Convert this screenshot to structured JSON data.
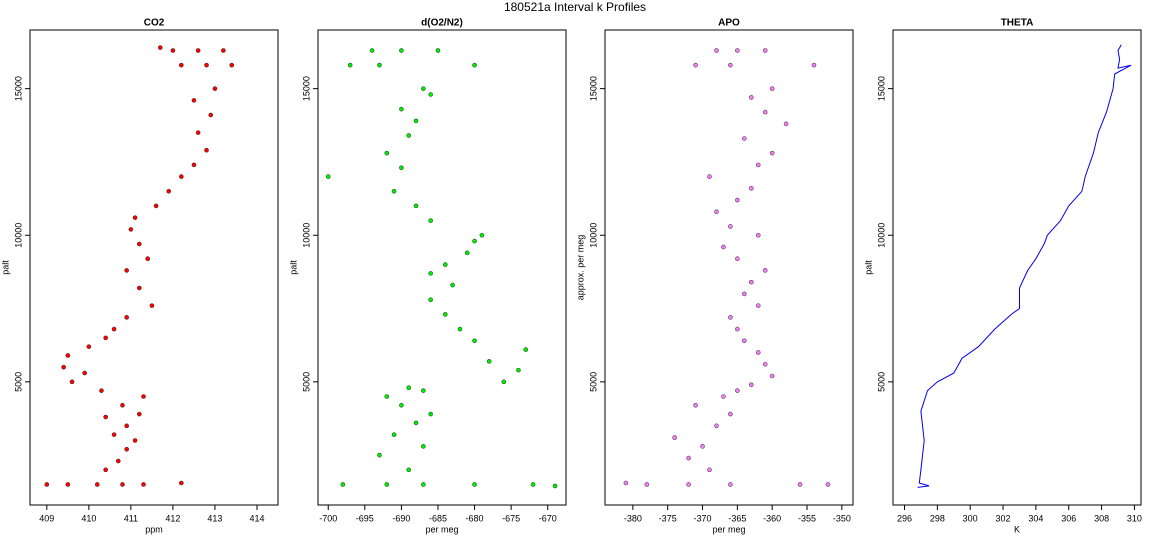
{
  "title": "180521a   Interval k Profiles",
  "chart_data": [
    {
      "type": "scatter",
      "title": "CO2",
      "xlabel": "ppm",
      "ylabel": "palt",
      "color": "#ff0000",
      "edgecolor": "#552222",
      "xlim": [
        408.6,
        414.5
      ],
      "xticks": [
        409,
        410,
        411,
        412,
        413,
        414
      ],
      "ylim": [
        800,
        17000
      ],
      "yticks": [
        5000,
        10000,
        15000
      ],
      "x": [
        410.2,
        409.5,
        410.8,
        411.3,
        409.0,
        412.2,
        410.4,
        410.7,
        410.9,
        411.1,
        410.6,
        410.9,
        410.4,
        411.2,
        410.8,
        411.3,
        410.3,
        409.6,
        409.9,
        409.4,
        409.5,
        410.0,
        410.4,
        410.6,
        410.9,
        411.5,
        411.2,
        410.9,
        411.4,
        411.2,
        411.0,
        411.1,
        411.6,
        411.9,
        412.2,
        412.5,
        412.8,
        412.6,
        412.9,
        412.5,
        413.0,
        412.8,
        412.2,
        413.4,
        412.6,
        412.0,
        413.2,
        411.7
      ],
      "values": [
        1500,
        1500,
        1500,
        1500,
        1500,
        1550,
        2000,
        2300,
        2700,
        3000,
        3200,
        3500,
        3800,
        3900,
        4200,
        4500,
        4700,
        5000,
        5300,
        5500,
        5900,
        6200,
        6500,
        6800,
        7200,
        7600,
        8200,
        8800,
        9200,
        9700,
        10200,
        10600,
        11000,
        11500,
        12000,
        12400,
        12900,
        13500,
        14100,
        14600,
        15000,
        15800,
        15800,
        15800,
        16300,
        16300,
        16300,
        16400
      ]
    },
    {
      "type": "scatter",
      "title": "d(O2/N2)",
      "xlabel": "per meg",
      "ylabel": "palt",
      "color": "#00ee00",
      "edgecolor": "#225522",
      "xlim": [
        -701.4,
        -667.5
      ],
      "xticks": [
        -700,
        -695,
        -690,
        -685,
        -680,
        -675,
        -670
      ],
      "ylim": [
        800,
        17000
      ],
      "yticks": [
        5000,
        10000,
        15000
      ],
      "x": [
        -687,
        -698,
        -680,
        -672,
        -692,
        -669,
        -689,
        -693,
        -687,
        -691,
        -688,
        -686,
        -690,
        -692,
        -687,
        -689,
        -676,
        -674,
        -678,
        -673,
        -680,
        -682,
        -684,
        -686,
        -683,
        -686,
        -684,
        -681,
        -680,
        -679,
        -686,
        -688,
        -691,
        -700,
        -690,
        -692,
        -689,
        -688,
        -690,
        -686,
        -687,
        -693,
        -697,
        -680,
        -690,
        -694,
        -685
      ],
      "values": [
        1500,
        1500,
        1500,
        1500,
        1500,
        1450,
        2000,
        2500,
        2800,
        3200,
        3600,
        3900,
        4200,
        4500,
        4700,
        4800,
        5000,
        5400,
        5700,
        6100,
        6400,
        6800,
        7300,
        7800,
        8300,
        8700,
        9000,
        9400,
        9800,
        10000,
        10500,
        11000,
        11500,
        12000,
        12300,
        12800,
        13400,
        13900,
        14300,
        14800,
        15000,
        15800,
        15800,
        15800,
        16300,
        16300,
        16300
      ]
    },
    {
      "type": "scatter",
      "title": "APO",
      "xlabel": "per meg",
      "ylabel": "approx. per meg",
      "color": "#ee82ee",
      "edgecolor": "#663366",
      "xlim": [
        -384,
        -348.4
      ],
      "xticks": [
        -380,
        -375,
        -370,
        -365,
        -360,
        -355,
        -350
      ],
      "ylim": [
        800,
        17000
      ],
      "yticks": [
        5000,
        10000,
        15000
      ],
      "x": [
        -366,
        -378,
        -356,
        -372,
        -352,
        -381,
        -369,
        -372,
        -370,
        -374,
        -368,
        -366,
        -371,
        -367,
        -365,
        -363,
        -360,
        -361,
        -362,
        -364,
        -365,
        -366,
        -362,
        -364,
        -363,
        -361,
        -365,
        -367,
        -362,
        -366,
        -368,
        -365,
        -363,
        -369,
        -362,
        -360,
        -364,
        -358,
        -361,
        -363,
        -360,
        -366,
        -371,
        -354,
        -365,
        -361,
        -368
      ],
      "values": [
        1500,
        1500,
        1500,
        1500,
        1500,
        1550,
        2000,
        2400,
        2800,
        3100,
        3500,
        3900,
        4200,
        4500,
        4700,
        4900,
        5200,
        5600,
        6000,
        6400,
        6800,
        7200,
        7600,
        8000,
        8400,
        8800,
        9200,
        9600,
        10000,
        10300,
        10800,
        11200,
        11600,
        12000,
        12400,
        12800,
        13300,
        13800,
        14200,
        14700,
        15000,
        15800,
        15800,
        15800,
        16300,
        16300,
        16300
      ]
    },
    {
      "type": "line",
      "title": "THETA",
      "xlabel": "K",
      "ylabel": "palt",
      "color": "#0000ee",
      "xlim": [
        295.3,
        310.4
      ],
      "xticks": [
        296,
        298,
        300,
        302,
        304,
        306,
        308,
        310
      ],
      "ylim": [
        800,
        17000
      ],
      "yticks": [
        5000,
        10000,
        15000
      ],
      "x": [
        296.8,
        297.5,
        296.9,
        297.0,
        297.2,
        297.0,
        297.4,
        298.0,
        299.0,
        299.5,
        300.5,
        301.5,
        302.5,
        303.0,
        303.0,
        303.5,
        304.0,
        304.5,
        304.7,
        305.5,
        306.0,
        306.8,
        307.0,
        307.5,
        307.8,
        308.3,
        308.7,
        308.8,
        309.8,
        309.0,
        309.1,
        309.0,
        309.2
      ],
      "values": [
        1400,
        1450,
        1550,
        2000,
        3000,
        4000,
        4700,
        5000,
        5300,
        5800,
        6200,
        6800,
        7300,
        7500,
        8200,
        8800,
        9200,
        9700,
        10000,
        10500,
        11000,
        11500,
        12000,
        12800,
        13500,
        14200,
        15000,
        15500,
        15800,
        15700,
        16000,
        16300,
        16500
      ]
    }
  ]
}
